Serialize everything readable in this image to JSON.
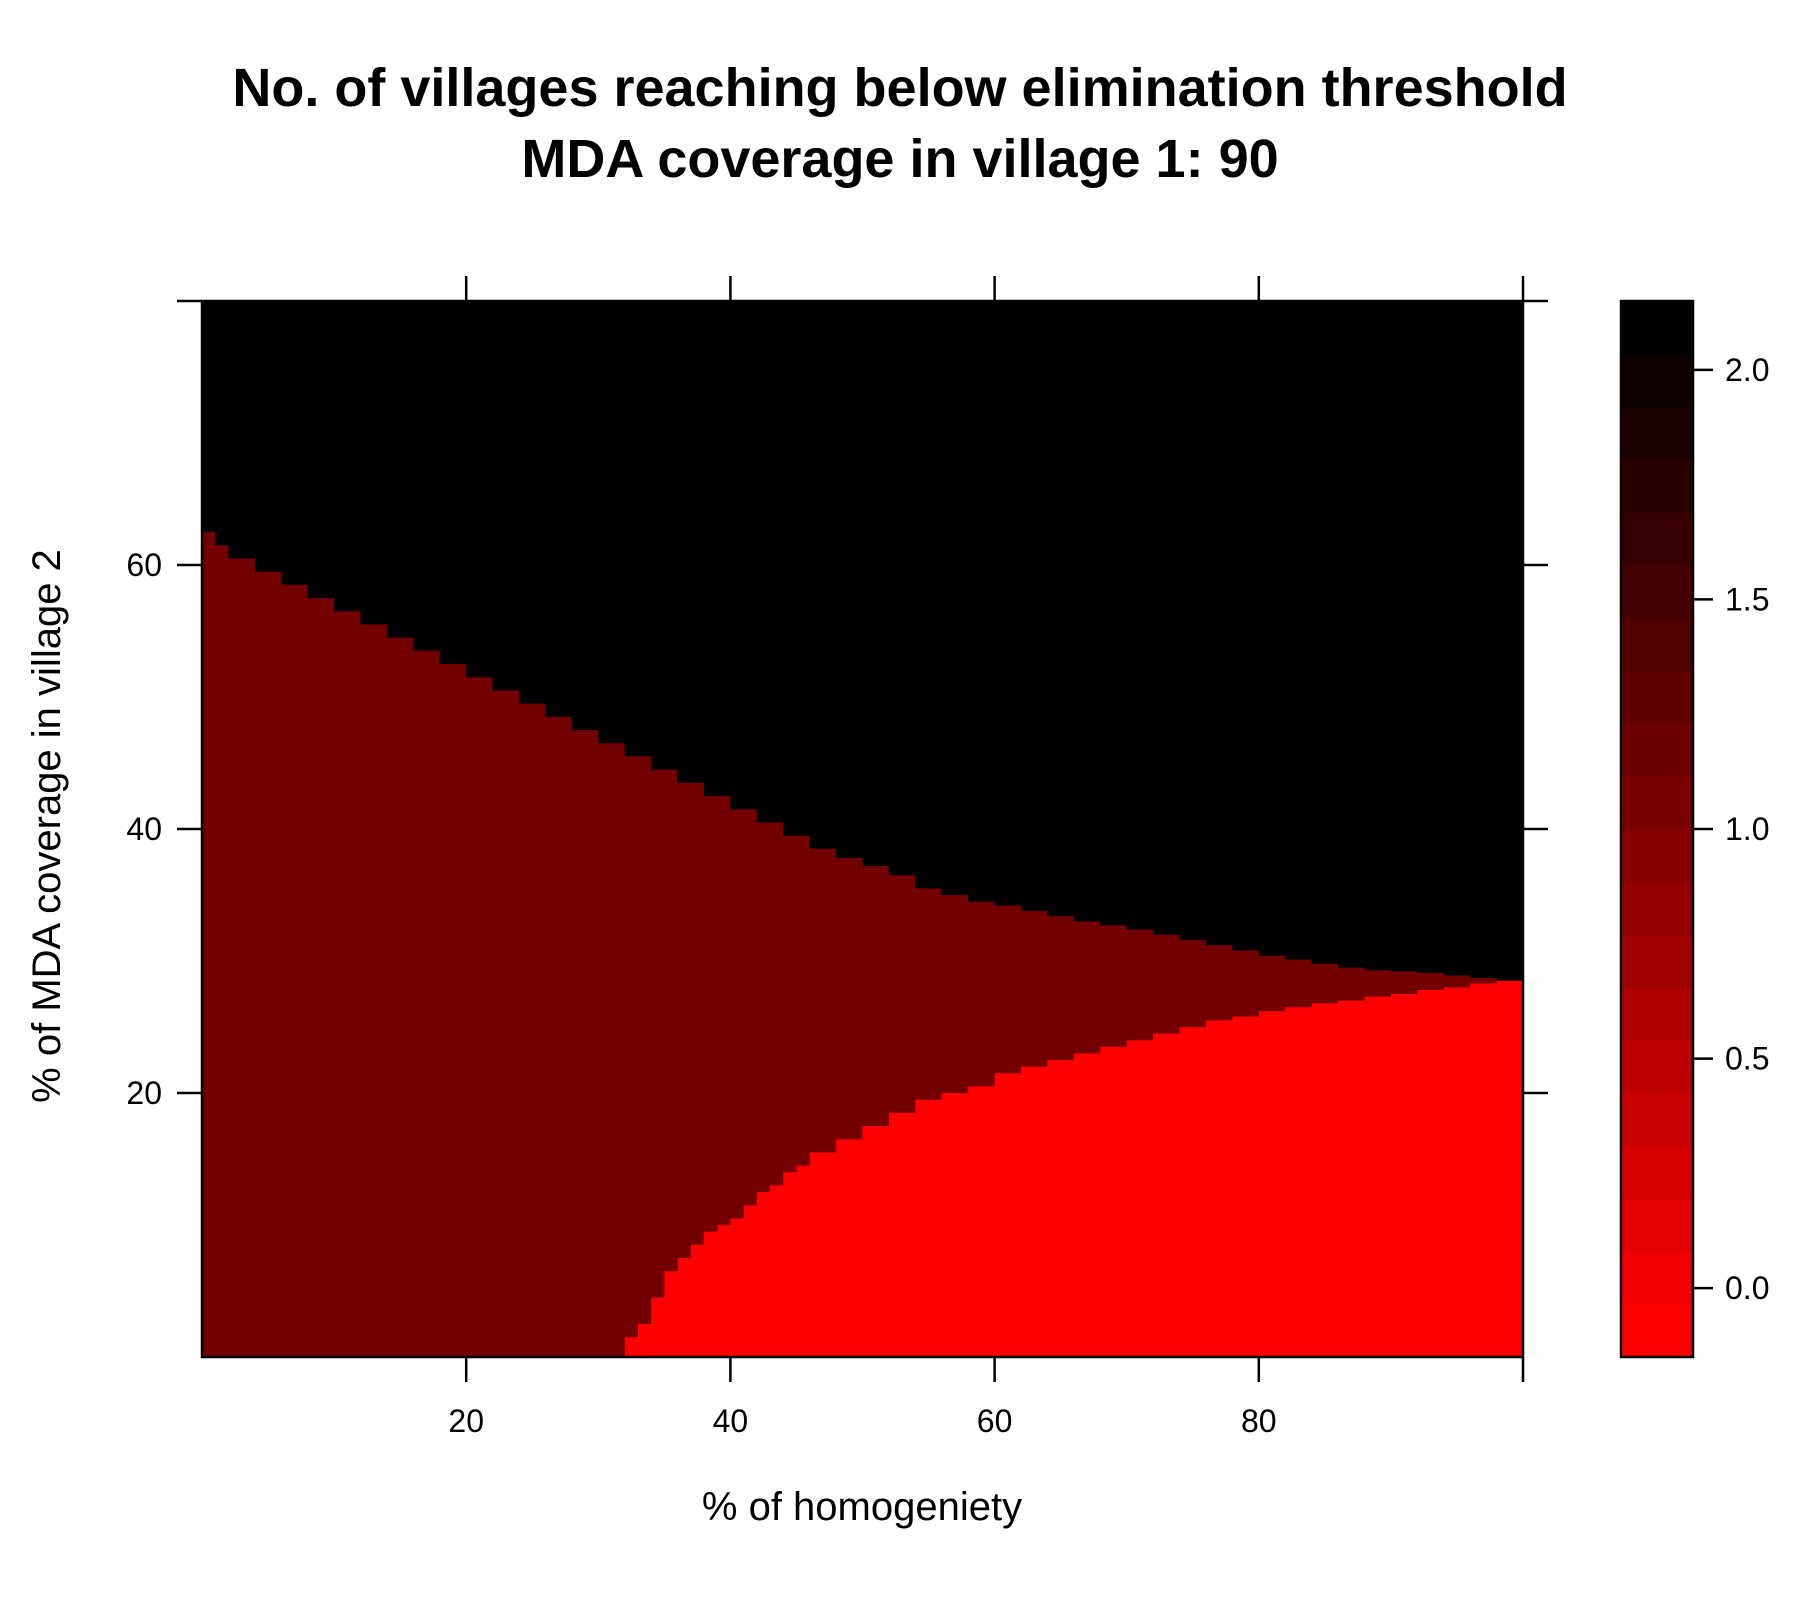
{
  "chart_data": {
    "type": "heatmap",
    "title_lines": [
      "No. of villages reaching below elimination threshold",
      "MDA coverage in village 1: 90"
    ],
    "xlabel": "% of homogeniety",
    "ylabel": "% of MDA coverage in village 2",
    "xlim": [
      0,
      100
    ],
    "ylim": [
      0,
      80
    ],
    "x_ticks": [
      20,
      40,
      60,
      80
    ],
    "x_tick_labels": [
      "20",
      "40",
      "60",
      "80"
    ],
    "y_ticks": [
      20,
      40,
      60
    ],
    "y_tick_labels": [
      "20",
      "40",
      "60"
    ],
    "grid": false,
    "colorbar": {
      "range": [
        -0.15,
        2.15
      ],
      "ticks": [
        0.0,
        0.5,
        1.0,
        1.5,
        2.0
      ],
      "tick_labels": [
        "0.0",
        "0.5",
        "1.0",
        "1.5",
        "2.0"
      ],
      "levels": 20,
      "color_low": "#ff0000",
      "color_high": "#000000"
    },
    "regions": [
      {
        "value": 2,
        "color": "#000000",
        "description_boundary": "above upper boundary"
      },
      {
        "value": 1,
        "color": "#720000",
        "description_boundary": "between boundaries"
      },
      {
        "value": 0,
        "color": "#ff0000",
        "description_boundary": "below lower boundary"
      }
    ],
    "upper_boundary": {
      "x": [
        0,
        1,
        2,
        4,
        6,
        8,
        10,
        12,
        14,
        16,
        18,
        20,
        22,
        24,
        26,
        28,
        30,
        32,
        34,
        36,
        38,
        40,
        42,
        44,
        46,
        48,
        50,
        52,
        54,
        56,
        58,
        60,
        62,
        64,
        66,
        68,
        70,
        72,
        74,
        76,
        78,
        80,
        82,
        84,
        86,
        88,
        90,
        92,
        94,
        96,
        98,
        100
      ],
      "y": [
        62.5,
        61.5,
        60.5,
        59.5,
        58.5,
        57.5,
        56.5,
        55.5,
        54.5,
        53.5,
        52.5,
        51.5,
        50.5,
        49.5,
        48.5,
        47.5,
        46.5,
        45.5,
        44.5,
        43.5,
        42.5,
        41.5,
        40.5,
        39.5,
        38.5,
        37.8,
        37.2,
        36.5,
        35.5,
        35.0,
        34.5,
        34.2,
        33.8,
        33.4,
        33.0,
        32.7,
        32.4,
        32.0,
        31.6,
        31.2,
        30.8,
        30.4,
        30.1,
        29.8,
        29.5,
        29.3,
        29.2,
        29.1,
        28.9,
        28.7,
        28.5,
        28.5
      ]
    },
    "lower_boundary": {
      "x": [
        31,
        32,
        33,
        34,
        35,
        36,
        37,
        38,
        39,
        40,
        41,
        42,
        43,
        44,
        45,
        46,
        48,
        50,
        52,
        54,
        56,
        58,
        60,
        62,
        64,
        66,
        68,
        70,
        72,
        74,
        76,
        78,
        80,
        82,
        84,
        86,
        88,
        90,
        92,
        94,
        96,
        98,
        100
      ],
      "y": [
        0,
        1.5,
        2.5,
        4.5,
        6.5,
        7.5,
        8.5,
        9.5,
        10.0,
        10.5,
        11.5,
        12.5,
        13.0,
        14.0,
        14.5,
        15.5,
        16.5,
        17.5,
        18.5,
        19.5,
        20.0,
        20.5,
        21.5,
        22.0,
        22.5,
        23.0,
        23.5,
        24.0,
        24.5,
        25.0,
        25.5,
        25.8,
        26.2,
        26.5,
        26.8,
        27.0,
        27.3,
        27.5,
        27.8,
        28.0,
        28.3,
        28.5,
        28.5
      ]
    }
  }
}
